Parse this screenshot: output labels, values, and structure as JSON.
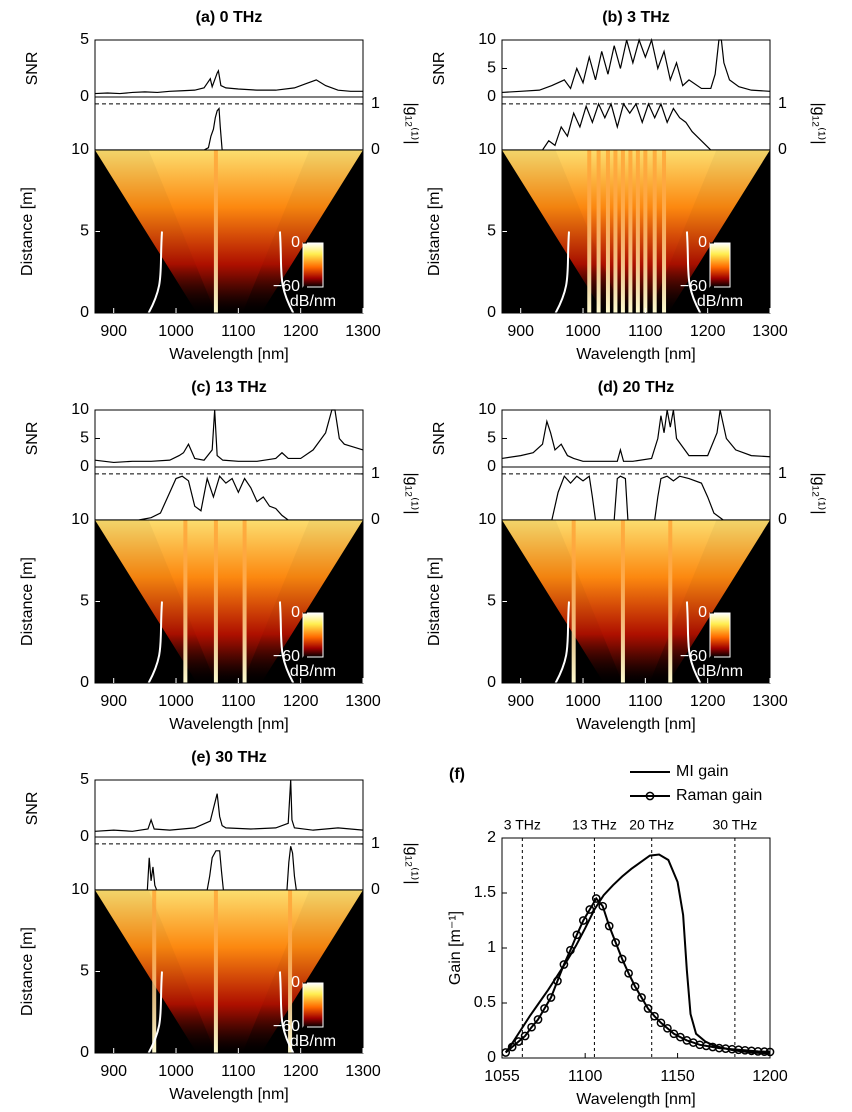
{
  "chart_data": [
    {
      "type": "spectrogram",
      "title": "(a) 0 THz",
      "xlabel": "Wavelength [nm]",
      "xlim": [
        870,
        1300
      ],
      "xticks": [
        900,
        1000,
        1100,
        1200,
        1300
      ],
      "snr": {
        "ylabel": "SNR",
        "ylim": [
          0,
          5
        ],
        "yticks": [
          0,
          5
        ],
        "x": [
          870,
          890,
          910,
          930,
          950,
          970,
          990,
          1010,
          1030,
          1045,
          1050,
          1055,
          1058,
          1062,
          1066,
          1068,
          1072,
          1080,
          1100,
          1130,
          1160,
          1190,
          1210,
          1225,
          1240,
          1260,
          1280,
          1300
        ],
        "values": [
          0.3,
          0.35,
          0.3,
          0.4,
          0.45,
          0.4,
          0.5,
          0.55,
          0.6,
          0.8,
          1.2,
          1.6,
          0.9,
          1.5,
          2.1,
          2.3,
          1.0,
          0.8,
          0.7,
          0.6,
          0.6,
          0.8,
          1.2,
          1.5,
          1.0,
          0.6,
          0.5,
          0.5
        ]
      },
      "coherence": {
        "ylabel": "|g₁₂⁽¹⁾|",
        "ylim": [
          0,
          1.15
        ],
        "yticks": [
          0,
          1
        ],
        "reference_line": 1,
        "x": [
          870,
          1045,
          1052,
          1056,
          1060,
          1063,
          1066,
          1069,
          1071,
          1074,
          1300
        ],
        "values": [
          0,
          0,
          0.05,
          0.3,
          0.45,
          0.7,
          0.85,
          0.9,
          0.5,
          0,
          0
        ]
      },
      "map": {
        "ylabel": "Distance [m]",
        "ylim": [
          0,
          10
        ],
        "yticks": [
          0,
          5,
          10
        ],
        "filaments": [
          1064
        ],
        "colorbar": {
          "lim": [
            -60,
            0
          ],
          "ticks": [
            0,
            {
              "value": -60,
              "label": "−60"
            }
          ],
          "label": "dB/nm"
        }
      }
    },
    {
      "type": "spectrogram",
      "title": "(b) 3 THz",
      "xlabel": "Wavelength [nm]",
      "xlim": [
        870,
        1300
      ],
      "xticks": [
        900,
        1000,
        1100,
        1200,
        1300
      ],
      "snr": {
        "ylabel": "SNR",
        "ylim": [
          0,
          10
        ],
        "yticks": [
          0,
          5,
          10
        ],
        "x": [
          870,
          900,
          930,
          950,
          970,
          980,
          990,
          1000,
          1010,
          1020,
          1030,
          1040,
          1050,
          1060,
          1070,
          1080,
          1090,
          1100,
          1110,
          1120,
          1130,
          1140,
          1150,
          1160,
          1170,
          1190,
          1205,
          1212,
          1218,
          1222,
          1226,
          1235,
          1250,
          1270,
          1300
        ],
        "values": [
          0.8,
          1,
          1.2,
          2,
          3,
          1.5,
          5,
          2.5,
          7,
          3,
          8,
          4,
          9,
          5,
          10,
          6,
          10,
          7,
          10,
          5,
          8,
          3,
          6,
          2,
          3,
          1.5,
          1.5,
          4,
          10,
          10,
          6,
          3,
          1.8,
          1.2,
          1
        ]
      },
      "coherence": {
        "ylabel": "|g₁₂⁽¹⁾|",
        "ylim": [
          0,
          1.15
        ],
        "yticks": [
          0,
          1
        ],
        "reference_line": 1,
        "x": [
          870,
          935,
          945,
          955,
          965,
          975,
          985,
          995,
          1005,
          1015,
          1025,
          1035,
          1045,
          1055,
          1065,
          1075,
          1085,
          1095,
          1105,
          1115,
          1125,
          1135,
          1145,
          1155,
          1165,
          1175,
          1190,
          1205,
          1300
        ],
        "values": [
          0,
          0,
          0.2,
          0.1,
          0.5,
          0.3,
          0.8,
          0.5,
          0.95,
          0.6,
          1,
          0.7,
          1,
          0.5,
          1,
          0.8,
          1,
          0.6,
          1,
          0.7,
          1,
          0.6,
          0.9,
          0.7,
          0.6,
          0.4,
          0.2,
          0,
          0
        ]
      },
      "map": {
        "ylabel": "Distance [m]",
        "ylim": [
          0,
          10
        ],
        "yticks": [
          0,
          5,
          10
        ],
        "filaments": [
          1010,
          1025,
          1040,
          1052,
          1064,
          1076,
          1088,
          1100,
          1115,
          1130
        ],
        "colorbar": {
          "lim": [
            -60,
            0
          ],
          "ticks": [
            0,
            {
              "value": -60,
              "label": "−60"
            }
          ],
          "label": "dB/nm"
        }
      }
    },
    {
      "type": "spectrogram",
      "title": "(c) 13 THz",
      "xlabel": "Wavelength [nm]",
      "xlim": [
        870,
        1300
      ],
      "xticks": [
        900,
        1000,
        1100,
        1200,
        1300
      ],
      "snr": {
        "ylabel": "SNR",
        "ylim": [
          0,
          10
        ],
        "yticks": [
          0,
          5,
          10
        ],
        "x": [
          870,
          900,
          930,
          960,
          990,
          1005,
          1012,
          1020,
          1030,
          1045,
          1058,
          1062,
          1066,
          1075,
          1100,
          1130,
          1160,
          1170,
          1180,
          1200,
          1220,
          1240,
          1250,
          1255,
          1262,
          1270,
          1285,
          1300
        ],
        "values": [
          1.2,
          0.8,
          1,
          1,
          1.2,
          2,
          2.5,
          4,
          1.5,
          1.2,
          3,
          10,
          2,
          1.2,
          1,
          1,
          1.5,
          2.5,
          1.5,
          1.5,
          3,
          6,
          10,
          10,
          5,
          4,
          3.5,
          3
        ]
      },
      "coherence": {
        "ylabel": "|g₁₂⁽¹⁾|",
        "ylim": [
          0,
          1.15
        ],
        "yticks": [
          0,
          1
        ],
        "reference_line": 1,
        "x": [
          870,
          940,
          960,
          975,
          990,
          1000,
          1010,
          1020,
          1030,
          1040,
          1050,
          1060,
          1070,
          1080,
          1090,
          1100,
          1110,
          1120,
          1130,
          1140,
          1150,
          1160,
          1170,
          1180,
          1300
        ],
        "values": [
          0,
          0,
          0.05,
          0.15,
          0.6,
          0.9,
          0.95,
          0.85,
          0.3,
          0.2,
          0.9,
          0.5,
          0.95,
          0.8,
          0.9,
          0.6,
          0.9,
          0.7,
          0.4,
          0.5,
          0.3,
          0.25,
          0.1,
          0,
          0
        ]
      },
      "map": {
        "ylabel": "Distance [m]",
        "ylim": [
          0,
          10
        ],
        "yticks": [
          0,
          5,
          10
        ],
        "filaments": [
          1015,
          1064,
          1110
        ],
        "colorbar": {
          "lim": [
            -60,
            0
          ],
          "ticks": [
            0,
            {
              "value": -60,
              "label": "−60"
            }
          ],
          "label": "dB/nm"
        }
      }
    },
    {
      "type": "spectrogram",
      "title": "(d) 20 THz",
      "xlabel": "Wavelength [nm]",
      "xlim": [
        870,
        1300
      ],
      "xticks": [
        900,
        1000,
        1100,
        1200,
        1300
      ],
      "snr": {
        "ylabel": "SNR",
        "ylim": [
          0,
          10
        ],
        "yticks": [
          0,
          5,
          10
        ],
        "x": [
          870,
          900,
          920,
          935,
          942,
          948,
          955,
          965,
          975,
          985,
          1000,
          1030,
          1055,
          1060,
          1065,
          1080,
          1110,
          1120,
          1125,
          1130,
          1135,
          1140,
          1145,
          1150,
          1170,
          1200,
          1215,
          1220,
          1230,
          1245,
          1270,
          1300
        ],
        "values": [
          1.5,
          2,
          2.5,
          4,
          8,
          6,
          3,
          4,
          2,
          1.5,
          1,
          1,
          1,
          3,
          1,
          1,
          1.5,
          5,
          9,
          6,
          10,
          7,
          10,
          5,
          2,
          2,
          6,
          10,
          5,
          3,
          2,
          1.8
        ]
      },
      "coherence": {
        "ylabel": "|g₁₂⁽¹⁾|",
        "ylim": [
          0,
          1.15
        ],
        "yticks": [
          0,
          1
        ],
        "reference_line": 1,
        "x": [
          870,
          950,
          960,
          970,
          980,
          990,
          1000,
          1010,
          1015,
          1020,
          1050,
          1055,
          1060,
          1068,
          1072,
          1115,
          1120,
          1125,
          1135,
          1145,
          1155,
          1170,
          1190,
          1200,
          1210,
          1225,
          1300
        ],
        "values": [
          0,
          0,
          0.6,
          0.95,
          0.8,
          0.95,
          0.85,
          0.95,
          0.5,
          0,
          0,
          0.9,
          0.95,
          0.9,
          0,
          0,
          0.5,
          0.9,
          0.95,
          0.85,
          0.95,
          0.9,
          0.8,
          0.5,
          0.15,
          0,
          0
        ]
      },
      "map": {
        "ylabel": "Distance [m]",
        "ylim": [
          0,
          10
        ],
        "yticks": [
          0,
          5,
          10
        ],
        "filaments": [
          985,
          1064,
          1140
        ],
        "colorbar": {
          "lim": [
            -60,
            0
          ],
          "ticks": [
            0,
            {
              "value": -60,
              "label": "−60"
            }
          ],
          "label": "dB/nm"
        }
      }
    },
    {
      "type": "spectrogram",
      "title": "(e) 30 THz",
      "xlabel": "Wavelength [nm]",
      "xlim": [
        870,
        1300
      ],
      "xticks": [
        900,
        1000,
        1100,
        1200,
        1300
      ],
      "snr": {
        "ylabel": "SNR",
        "ylim": [
          0,
          5
        ],
        "yticks": [
          0,
          5
        ],
        "x": [
          870,
          900,
          930,
          955,
          960,
          965,
          990,
          1030,
          1055,
          1060,
          1066,
          1070,
          1074,
          1080,
          1120,
          1160,
          1180,
          1184,
          1186,
          1190,
          1220,
          1260,
          1300
        ],
        "values": [
          0.5,
          0.6,
          0.5,
          0.7,
          1.5,
          0.7,
          0.6,
          0.8,
          1.4,
          2.5,
          3.8,
          1.8,
          1,
          0.8,
          0.7,
          0.8,
          1.2,
          5,
          1.5,
          0.8,
          0.6,
          0.8,
          0.6
        ]
      },
      "coherence": {
        "ylabel": "|g₁₂⁽¹⁾|",
        "ylim": [
          0,
          1.15
        ],
        "yticks": [
          0,
          1
        ],
        "reference_line": 1,
        "x": [
          870,
          954,
          957,
          960,
          963,
          966,
          969,
          1050,
          1054,
          1058,
          1064,
          1070,
          1073,
          1076,
          1178,
          1181,
          1184,
          1187,
          1190,
          1193,
          1300
        ],
        "values": [
          0,
          0,
          0.7,
          0.2,
          0.5,
          0.1,
          0,
          0,
          0.3,
          0.7,
          0.85,
          0.85,
          0.4,
          0,
          0,
          0.6,
          0.95,
          0.8,
          0.3,
          0,
          0
        ]
      },
      "map": {
        "ylabel": "Distance [m]",
        "ylim": [
          0,
          10
        ],
        "yticks": [
          0,
          5,
          10
        ],
        "filaments": [
          965,
          1064,
          1183
        ],
        "colorbar": {
          "lim": [
            -60,
            0
          ],
          "ticks": [
            0,
            {
              "value": -60,
              "label": "−60"
            }
          ],
          "label": "dB/nm"
        }
      }
    },
    {
      "type": "line",
      "title": "(f)",
      "xlabel": "Wavelength [nm]",
      "ylabel": "Gain [m⁻¹]",
      "xlim": [
        1055,
        1200
      ],
      "xticks": [
        1055,
        1100,
        1150,
        1200
      ],
      "ylim": [
        0,
        2
      ],
      "yticks": [
        0,
        0.5,
        1,
        1.5,
        2
      ],
      "vlines": [
        {
          "value": 1066,
          "label": "3 THz"
        },
        {
          "value": 1105,
          "label": "13 THz"
        },
        {
          "value": 1136,
          "label": "20 THz"
        },
        {
          "value": 1181,
          "label": "30 THz"
        }
      ],
      "series": [
        {
          "name": "MI gain",
          "color": "#000000",
          "marker": "none",
          "x": [
            1057,
            1060,
            1065,
            1070,
            1075,
            1080,
            1085,
            1090,
            1095,
            1100,
            1105,
            1110,
            1115,
            1120,
            1125,
            1130,
            1135,
            1140,
            1145,
            1150,
            1153,
            1155,
            1157,
            1160,
            1165,
            1170,
            1180,
            1190,
            1200
          ],
          "values": [
            0.05,
            0.12,
            0.25,
            0.38,
            0.5,
            0.62,
            0.75,
            0.88,
            1.02,
            1.18,
            1.35,
            1.48,
            1.57,
            1.65,
            1.72,
            1.78,
            1.84,
            1.85,
            1.8,
            1.6,
            1.3,
            0.8,
            0.4,
            0.22,
            0.15,
            0.11,
            0.07,
            0.05,
            0.04
          ]
        },
        {
          "name": "Raman gain",
          "color": "#000000",
          "marker": "circle",
          "x": [
            1057,
            1060.5,
            1064,
            1067.5,
            1071,
            1074.5,
            1078,
            1081.5,
            1085,
            1088.5,
            1092,
            1095.5,
            1099,
            1102.5,
            1106,
            1109.5,
            1113,
            1116.5,
            1120,
            1123.5,
            1127,
            1130.5,
            1134,
            1137.5,
            1141,
            1144.5,
            1148,
            1151.5,
            1155,
            1158.5,
            1162,
            1165.5,
            1169,
            1172.5,
            1176,
            1179.5,
            1183,
            1186.5,
            1190,
            1193.5,
            1197,
            1200
          ],
          "values": [
            0.05,
            0.1,
            0.15,
            0.2,
            0.28,
            0.35,
            0.45,
            0.55,
            0.7,
            0.85,
            0.98,
            1.12,
            1.25,
            1.35,
            1.45,
            1.38,
            1.2,
            1.05,
            0.9,
            0.77,
            0.65,
            0.55,
            0.45,
            0.38,
            0.32,
            0.27,
            0.22,
            0.19,
            0.16,
            0.14,
            0.12,
            0.11,
            0.1,
            0.09,
            0.085,
            0.08,
            0.075,
            0.07,
            0.065,
            0.06,
            0.058,
            0.055
          ]
        }
      ]
    }
  ]
}
